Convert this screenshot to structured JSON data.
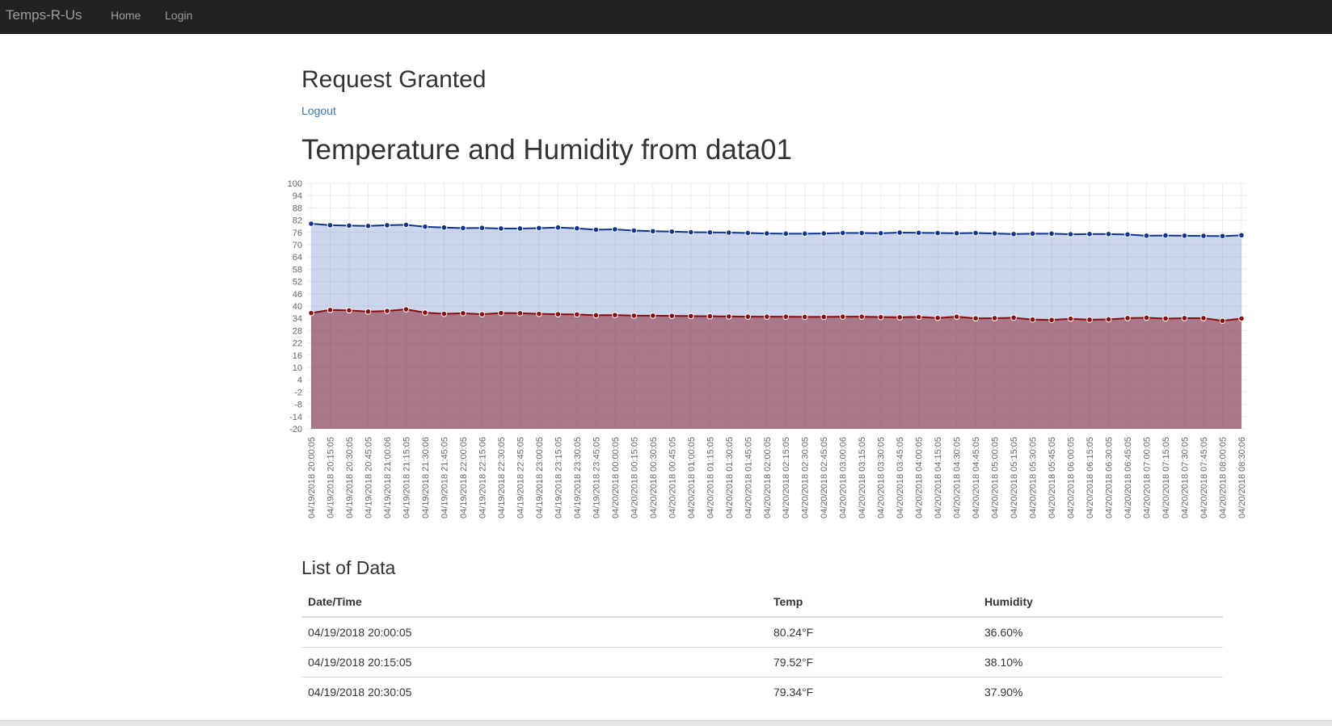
{
  "navbar": {
    "brand": "Temps-R-Us",
    "home": "Home",
    "login": "Login"
  },
  "page": {
    "heading": "Request Granted",
    "logout": "Logout",
    "chart_heading": "Temperature and Humidity from data01",
    "list_heading": "List of Data"
  },
  "colors": {
    "temp": "#10348c",
    "humidity": "#8b0c0c",
    "link": "#337ab7",
    "nav_bg": "#222222"
  },
  "chart_data": {
    "type": "area",
    "ylim": [
      -20,
      100
    ],
    "yticks": [
      100,
      94,
      88,
      82,
      76,
      70,
      64,
      58,
      52,
      46,
      40,
      34,
      28,
      22,
      16,
      10,
      4,
      -2,
      -8,
      -14,
      -20
    ],
    "grid": true,
    "x": [
      "04/19/2018 20:00:05",
      "04/19/2018 20:15:05",
      "04/19/2018 20:30:05",
      "04/19/2018 20:45:05",
      "04/19/2018 21:00:06",
      "04/19/2018 21:15:05",
      "04/19/2018 21:30:06",
      "04/19/2018 21:45:05",
      "04/19/2018 22:00:05",
      "04/19/2018 22:15:06",
      "04/19/2018 22:30:05",
      "04/19/2018 22:45:05",
      "04/19/2018 23:00:05",
      "04/19/2018 23:15:05",
      "04/19/2018 23:30:05",
      "04/19/2018 23:45:05",
      "04/20/2018 00:00:05",
      "04/20/2018 00:15:05",
      "04/20/2018 00:30:05",
      "04/20/2018 00:45:05",
      "04/20/2018 01:00:05",
      "04/20/2018 01:15:05",
      "04/20/2018 01:30:05",
      "04/20/2018 01:45:05",
      "04/20/2018 02:00:05",
      "04/20/2018 02:15:05",
      "04/20/2018 02:30:05",
      "04/20/2018 02:45:05",
      "04/20/2018 03:00:06",
      "04/20/2018 03:15:05",
      "04/20/2018 03:30:05",
      "04/20/2018 03:45:05",
      "04/20/2018 04:00:05",
      "04/20/2018 04:15:05",
      "04/20/2018 04:30:05",
      "04/20/2018 04:45:05",
      "04/20/2018 05:00:05",
      "04/20/2018 05:15:05",
      "04/20/2018 05:30:05",
      "04/20/2018 05:45:05",
      "04/20/2018 06:00:05",
      "04/20/2018 06:15:05",
      "04/20/2018 06:30:05",
      "04/20/2018 06:45:05",
      "04/20/2018 07:00:05",
      "04/20/2018 07:15:05",
      "04/20/2018 07:30:05",
      "04/20/2018 07:45:05",
      "04/20/2018 08:00:05",
      "04/20/2018 08:30:06"
    ],
    "series": [
      {
        "values": [
          80.24,
          79.52,
          79.34,
          79.16,
          79.5,
          79.7,
          78.8,
          78.4,
          78.1,
          78.2,
          77.9,
          77.9,
          78.1,
          78.4,
          78.0,
          77.3,
          77.5,
          76.9,
          76.6,
          76.4,
          76.1,
          76.0,
          75.9,
          75.7,
          75.5,
          75.4,
          75.4,
          75.5,
          75.7,
          75.7,
          75.6,
          75.9,
          75.8,
          75.7,
          75.6,
          75.7,
          75.5,
          75.2,
          75.4,
          75.4,
          75.1,
          75.2,
          75.2,
          75.0,
          74.4,
          74.5,
          74.4,
          74.3,
          74.2,
          74.6
        ]
      },
      {
        "values": [
          36.6,
          38.1,
          37.9,
          37.3,
          37.6,
          38.4,
          36.8,
          36.2,
          36.5,
          36.0,
          36.6,
          36.5,
          36.2,
          36.0,
          35.9,
          35.5,
          35.6,
          35.3,
          35.3,
          35.2,
          35.1,
          35.0,
          34.9,
          34.8,
          34.8,
          34.8,
          34.7,
          34.7,
          34.8,
          34.8,
          34.6,
          34.5,
          34.7,
          34.2,
          34.8,
          34.0,
          34.1,
          34.3,
          33.4,
          33.2,
          33.8,
          33.3,
          33.5,
          34.1,
          34.3,
          33.9,
          34.1,
          34.1,
          32.8,
          33.9
        ]
      }
    ]
  },
  "table": {
    "headers": [
      "Date/Time",
      "Temp",
      "Humidity"
    ],
    "rows": [
      [
        "04/19/2018 20:00:05",
        "80.24°F",
        "36.60%"
      ],
      [
        "04/19/2018 20:15:05",
        "79.52°F",
        "38.10%"
      ],
      [
        "04/19/2018 20:30:05",
        "79.34°F",
        "37.90%"
      ]
    ]
  }
}
